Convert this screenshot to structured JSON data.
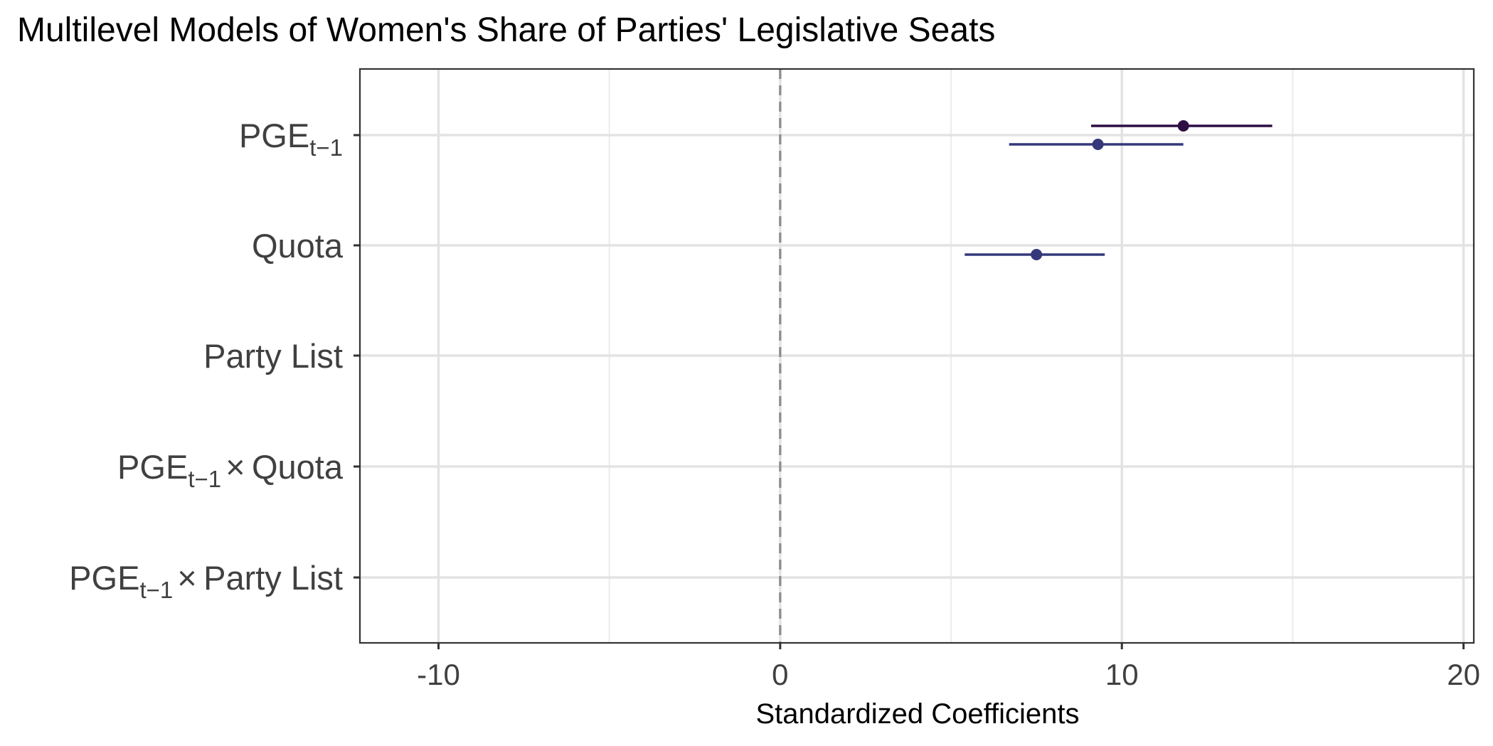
{
  "chart_data": {
    "type": "scatter",
    "subtype": "coefficient-plot",
    "title": "Multilevel Models of Women's Share of Parties' Legislative Seats",
    "xlabel": "Standardized Coefficients",
    "ylabel": "",
    "xlim": [
      -12.3,
      20.3
    ],
    "x_ticks": [
      -10,
      0,
      10,
      20
    ],
    "x_tick_labels": [
      "-10",
      "0",
      "10",
      "20"
    ],
    "grid": true,
    "reference_line": {
      "x": 0,
      "style": "dashed"
    },
    "legend": "none",
    "categories": [
      {
        "key": "pge",
        "base": "PGE",
        "sub": "t−1",
        "suffix": ""
      },
      {
        "key": "quota",
        "base": "Quota",
        "sub": "",
        "suffix": ""
      },
      {
        "key": "party_list",
        "base": "Party List",
        "sub": "",
        "suffix": ""
      },
      {
        "key": "pge_x_quota",
        "base": "PGE",
        "sub": "t−1",
        "suffix": "× Quota"
      },
      {
        "key": "pge_x_party_list",
        "base": "PGE",
        "sub": "t−1",
        "suffix": "× Party List"
      }
    ],
    "series": [
      {
        "color": "#2d0f44",
        "points": [
          {
            "category": "pge",
            "estimate": 11.8,
            "ci_low": 9.1,
            "ci_high": 14.4
          }
        ]
      },
      {
        "color": "#35387a",
        "points": [
          {
            "category": "pge",
            "estimate": 9.3,
            "ci_low": 6.7,
            "ci_high": 11.8
          },
          {
            "category": "quota",
            "estimate": 7.5,
            "ci_low": 5.4,
            "ci_high": 9.5
          }
        ]
      }
    ]
  }
}
